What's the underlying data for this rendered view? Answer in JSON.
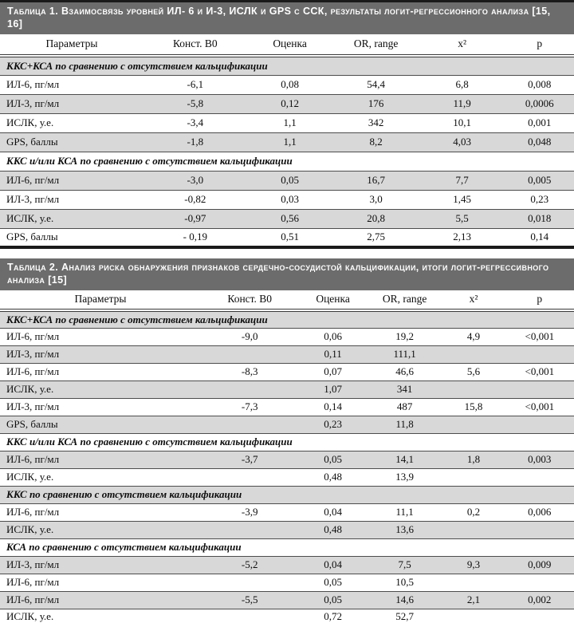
{
  "colors": {
    "page_bg": "#ffffff",
    "title_bar_bg": "#6c6c6c",
    "title_text": "#ffffff",
    "row_shade": "#d8d8d8",
    "rule": "#4d4d4d",
    "heavy_rule": "#1a1a1a",
    "text": "#0d0d0d"
  },
  "tables": [
    {
      "title": "Таблица 1. Взаимосвязь уровней ИЛ- 6 и И-3, ИСЛК и GPS с ССК, результаты логит-регрессионного анализа [15, 16]",
      "columns": [
        "Параметры",
        "Конст. B0",
        "Оценка",
        "OR, range",
        "x²",
        "p"
      ],
      "rows": [
        {
          "type": "section",
          "label": "ККС+КСА по сравнению с отсутствием кальцификации"
        },
        {
          "type": "data",
          "cells": [
            "ИЛ-6, пг/мл",
            "-6,1",
            "0,08",
            "54,4",
            "6,8",
            "0,008"
          ]
        },
        {
          "type": "data",
          "cells": [
            "ИЛ-3, пг/мл",
            "-5,8",
            "0,12",
            "176",
            "11,9",
            "0,0006"
          ]
        },
        {
          "type": "data",
          "cells": [
            "ИСЛК, у.е.",
            "-3,4",
            "1,1",
            "342",
            "10,1",
            "0,001"
          ]
        },
        {
          "type": "data",
          "cells": [
            "GPS, баллы",
            "-1,8",
            "1,1",
            "8,2",
            "4,03",
            "0,048"
          ]
        },
        {
          "type": "section",
          "label": "ККС и/или КСА по сравнению с отсутствием кальцификации"
        },
        {
          "type": "data",
          "cells": [
            "ИЛ-6, пг/мл",
            "-3,0",
            "0,05",
            "16,7",
            "7,7",
            "0,005"
          ]
        },
        {
          "type": "data",
          "cells": [
            "ИЛ-3, пг/мл",
            "-0,82",
            "0,03",
            "3,0",
            "1,45",
            "0,23"
          ]
        },
        {
          "type": "data",
          "cells": [
            "ИСЛК, у.е.",
            "-0,97",
            "0,56",
            "20,8",
            "5,5",
            "0,018"
          ]
        },
        {
          "type": "data",
          "cells": [
            "GPS, баллы",
            "- 0,19",
            "0,51",
            "2,75",
            "2,13",
            "0,14"
          ]
        }
      ]
    },
    {
      "title": "Таблица 2. Анализ риска обнаружения признаков сердечно-сосудистой кальцификации, итоги логит-регрессивного анализа [15]",
      "columns": [
        "Параметры",
        "Конст. B0",
        "Оценка",
        "OR, range",
        "x²",
        "p"
      ],
      "rows": [
        {
          "type": "section",
          "label": "ККС+КСА по сравнению с отсутствием кальцификации"
        },
        {
          "type": "data",
          "cells": [
            "ИЛ-6, пг/мл",
            "-9,0",
            "0,06",
            "19,2",
            "4,9",
            "<0,001"
          ]
        },
        {
          "type": "data",
          "cells": [
            "ИЛ-3, пг/мл",
            "",
            "0,11",
            "111,1",
            "",
            ""
          ]
        },
        {
          "type": "data",
          "cells": [
            "ИЛ-6, пг/мл",
            "-8,3",
            "0,07",
            "46,6",
            "5,6",
            "<0,001"
          ]
        },
        {
          "type": "data",
          "cells": [
            "ИСЛК, у.е.",
            "",
            "1,07",
            "341",
            "",
            ""
          ]
        },
        {
          "type": "data",
          "cells": [
            "ИЛ-3, пг/мл",
            "-7,3",
            "0,14",
            "487",
            "15,8",
            "<0,001"
          ]
        },
        {
          "type": "data",
          "cells": [
            "GPS, баллы",
            "",
            "0,23",
            "11,8",
            "",
            ""
          ]
        },
        {
          "type": "section",
          "label": "ККС и/или КСА по сравнению с отсутствием кальцификации"
        },
        {
          "type": "data",
          "cells": [
            "ИЛ-6, пг/мл",
            "-3,7",
            "0,05",
            "14,1",
            "1,8",
            "0,003"
          ]
        },
        {
          "type": "data",
          "cells": [
            "ИСЛК, у.е.",
            "",
            "0,48",
            "13,9",
            "",
            ""
          ]
        },
        {
          "type": "section",
          "label": "ККС по сравнению с отсутствием кальцификации"
        },
        {
          "type": "data",
          "cells": [
            "ИЛ-6, пг/мл",
            "-3,9",
            "0,04",
            "11,1",
            "0,2",
            "0,006"
          ]
        },
        {
          "type": "data",
          "cells": [
            "ИСЛК, у.е.",
            "",
            "0,48",
            "13,6",
            "",
            ""
          ]
        },
        {
          "type": "section",
          "label": "КСА по сравнению с отсутствием кальцификации"
        },
        {
          "type": "data",
          "cells": [
            "ИЛ-3, пг/мл",
            "-5,2",
            "0,04",
            "7,5",
            "9,3",
            "0,009"
          ]
        },
        {
          "type": "data",
          "cells": [
            "ИЛ-6, пг/мл",
            "",
            "0,05",
            "10,5",
            "",
            ""
          ]
        },
        {
          "type": "data",
          "cells": [
            "ИЛ-6, пг/мл",
            "-5,5",
            "0,05",
            "14,6",
            "2,1",
            "0,002"
          ]
        },
        {
          "type": "data",
          "cells": [
            "ИСЛК, у.е.",
            "",
            "0,72",
            "52,7",
            "",
            ""
          ]
        }
      ]
    }
  ]
}
